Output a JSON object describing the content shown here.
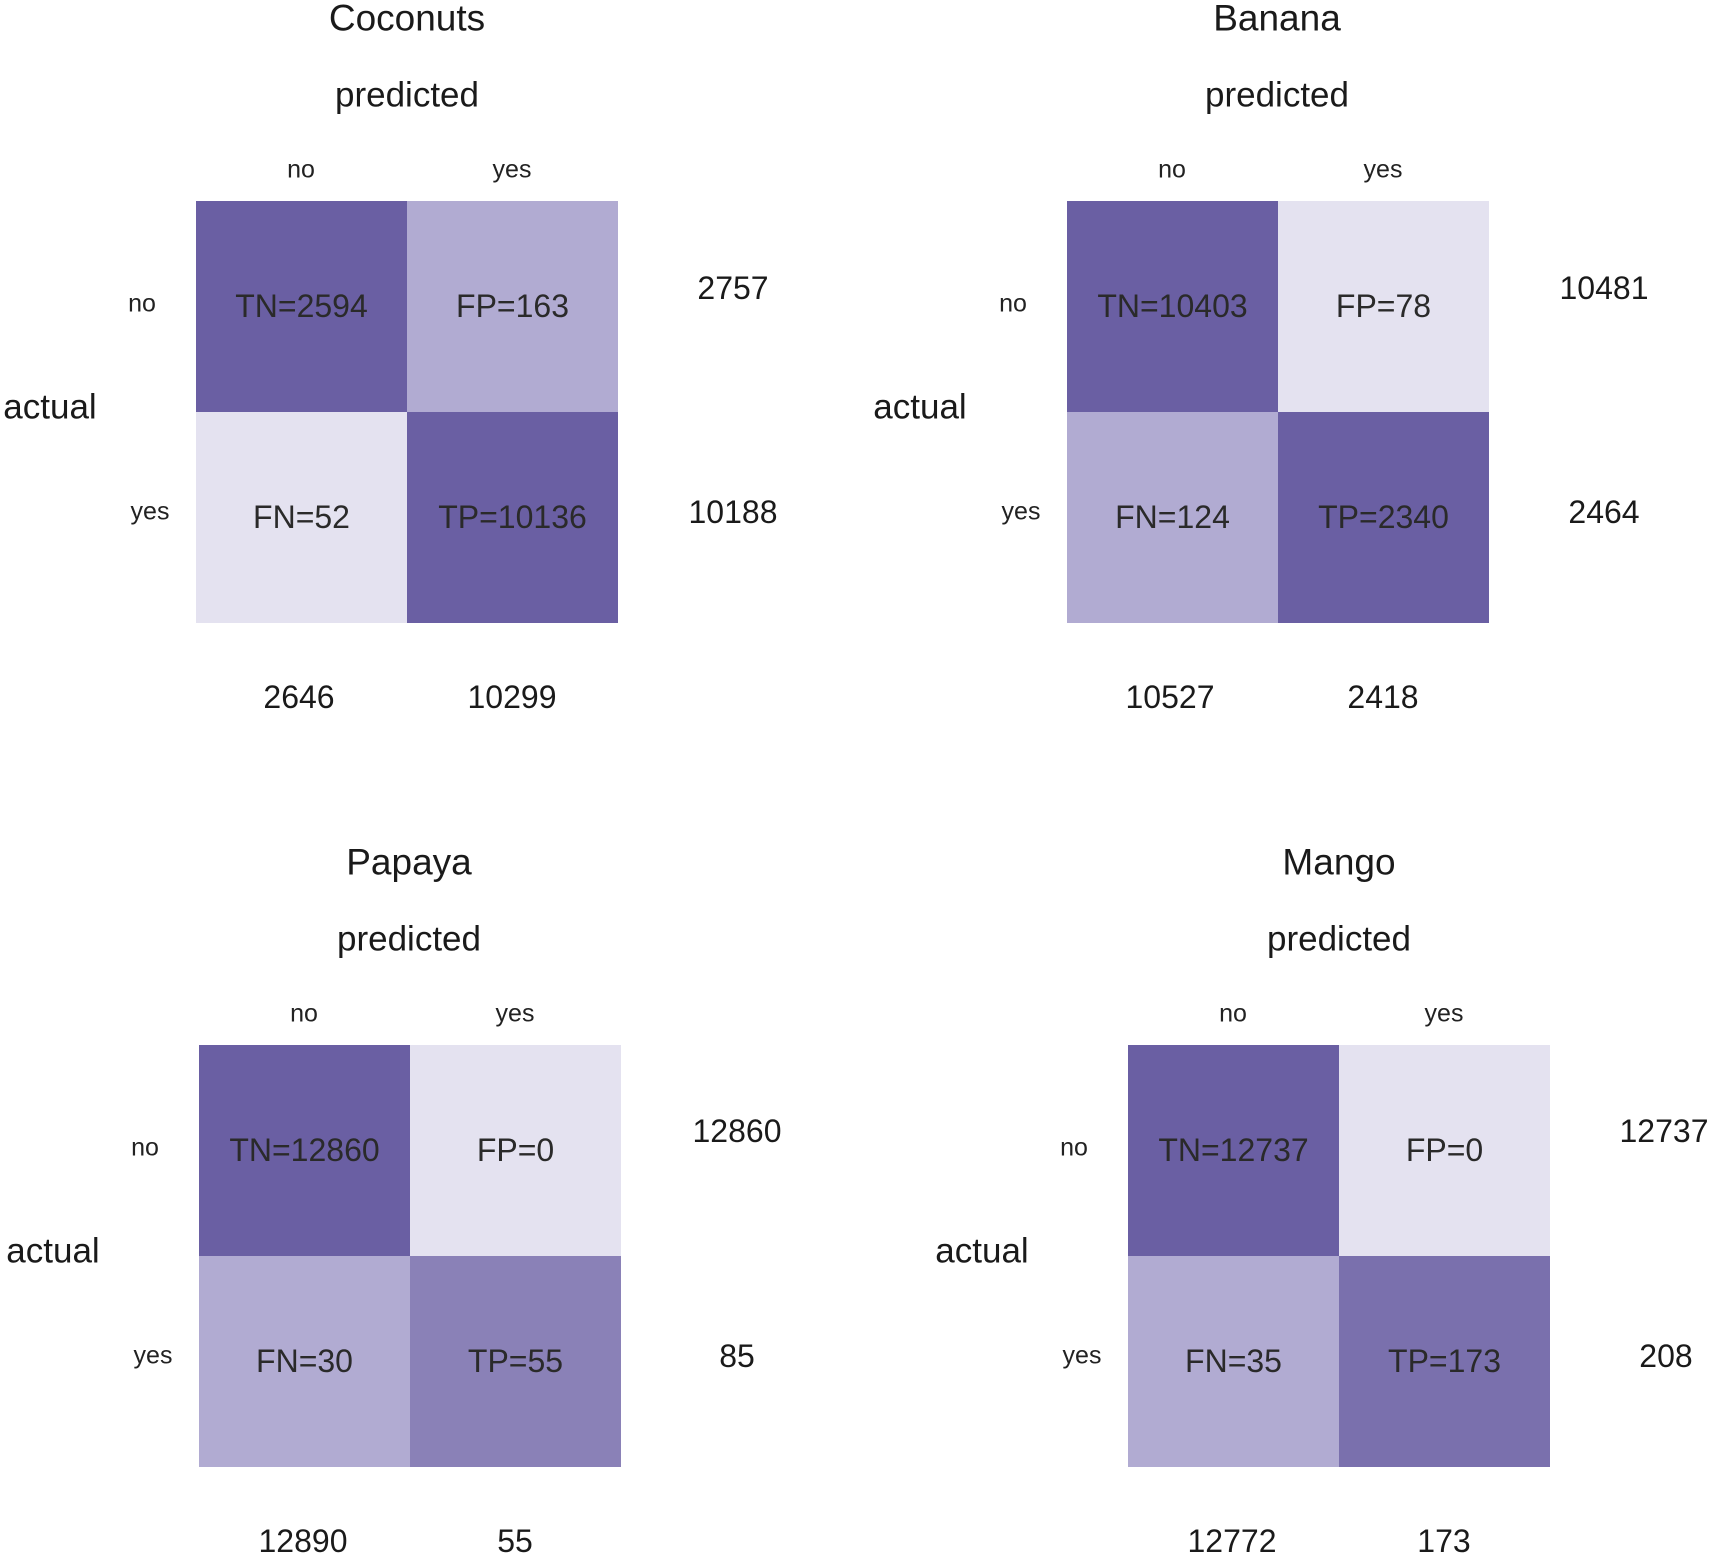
{
  "chart_data": [
    {
      "type": "heatmap",
      "title": "Coconuts",
      "xlabel": "predicted",
      "ylabel": "actual",
      "col_labels": [
        "no",
        "yes"
      ],
      "row_labels": [
        "no",
        "yes"
      ],
      "cells": [
        [
          {
            "label": "TN=2594",
            "value": 2594,
            "color": "#6a5fa3"
          },
          {
            "label": "FP=163",
            "value": 163,
            "color": "#b1abd2"
          }
        ],
        [
          {
            "label": "FN=52",
            "value": 52,
            "color": "#e4e2f0"
          },
          {
            "label": "TP=10136",
            "value": 10136,
            "color": "#6a5fa3"
          }
        ]
      ],
      "row_totals": [
        "2757",
        "10188"
      ],
      "col_totals": [
        "2646",
        "10299"
      ]
    },
    {
      "type": "heatmap",
      "title": "Banana",
      "xlabel": "predicted",
      "ylabel": "actual",
      "col_labels": [
        "no",
        "yes"
      ],
      "row_labels": [
        "no",
        "yes"
      ],
      "cells": [
        [
          {
            "label": "TN=10403",
            "value": 10403,
            "color": "#6a5fa3"
          },
          {
            "label": "FP=78",
            "value": 78,
            "color": "#e4e2f0"
          }
        ],
        [
          {
            "label": "FN=124",
            "value": 124,
            "color": "#b1abd2"
          },
          {
            "label": "TP=2340",
            "value": 2340,
            "color": "#6a5fa3"
          }
        ]
      ],
      "row_totals": [
        "10481",
        "2464"
      ],
      "col_totals": [
        "10527",
        "2418"
      ]
    },
    {
      "type": "heatmap",
      "title": "Papaya",
      "xlabel": "predicted",
      "ylabel": "actual",
      "col_labels": [
        "no",
        "yes"
      ],
      "row_labels": [
        "no",
        "yes"
      ],
      "cells": [
        [
          {
            "label": "TN=12860",
            "value": 12860,
            "color": "#6a5fa3"
          },
          {
            "label": "FP=0",
            "value": 0,
            "color": "#e4e2f0"
          }
        ],
        [
          {
            "label": "FN=30",
            "value": 30,
            "color": "#b1abd2"
          },
          {
            "label": "TP=55",
            "value": 55,
            "color": "#8a81b7"
          }
        ]
      ],
      "row_totals": [
        "12860",
        "85"
      ],
      "col_totals": [
        "12890",
        "55"
      ]
    },
    {
      "type": "heatmap",
      "title": "Mango",
      "xlabel": "predicted",
      "ylabel": "actual",
      "col_labels": [
        "no",
        "yes"
      ],
      "row_labels": [
        "no",
        "yes"
      ],
      "cells": [
        [
          {
            "label": "TN=12737",
            "value": 12737,
            "color": "#6a5fa3"
          },
          {
            "label": "FP=0",
            "value": 0,
            "color": "#e4e2f0"
          }
        ],
        [
          {
            "label": "FN=35",
            "value": 35,
            "color": "#b1abd2"
          },
          {
            "label": "TP=173",
            "value": 173,
            "color": "#7a70ad"
          }
        ]
      ],
      "row_totals": [
        "12737",
        "208"
      ],
      "col_totals": [
        "12772",
        "173"
      ]
    }
  ]
}
